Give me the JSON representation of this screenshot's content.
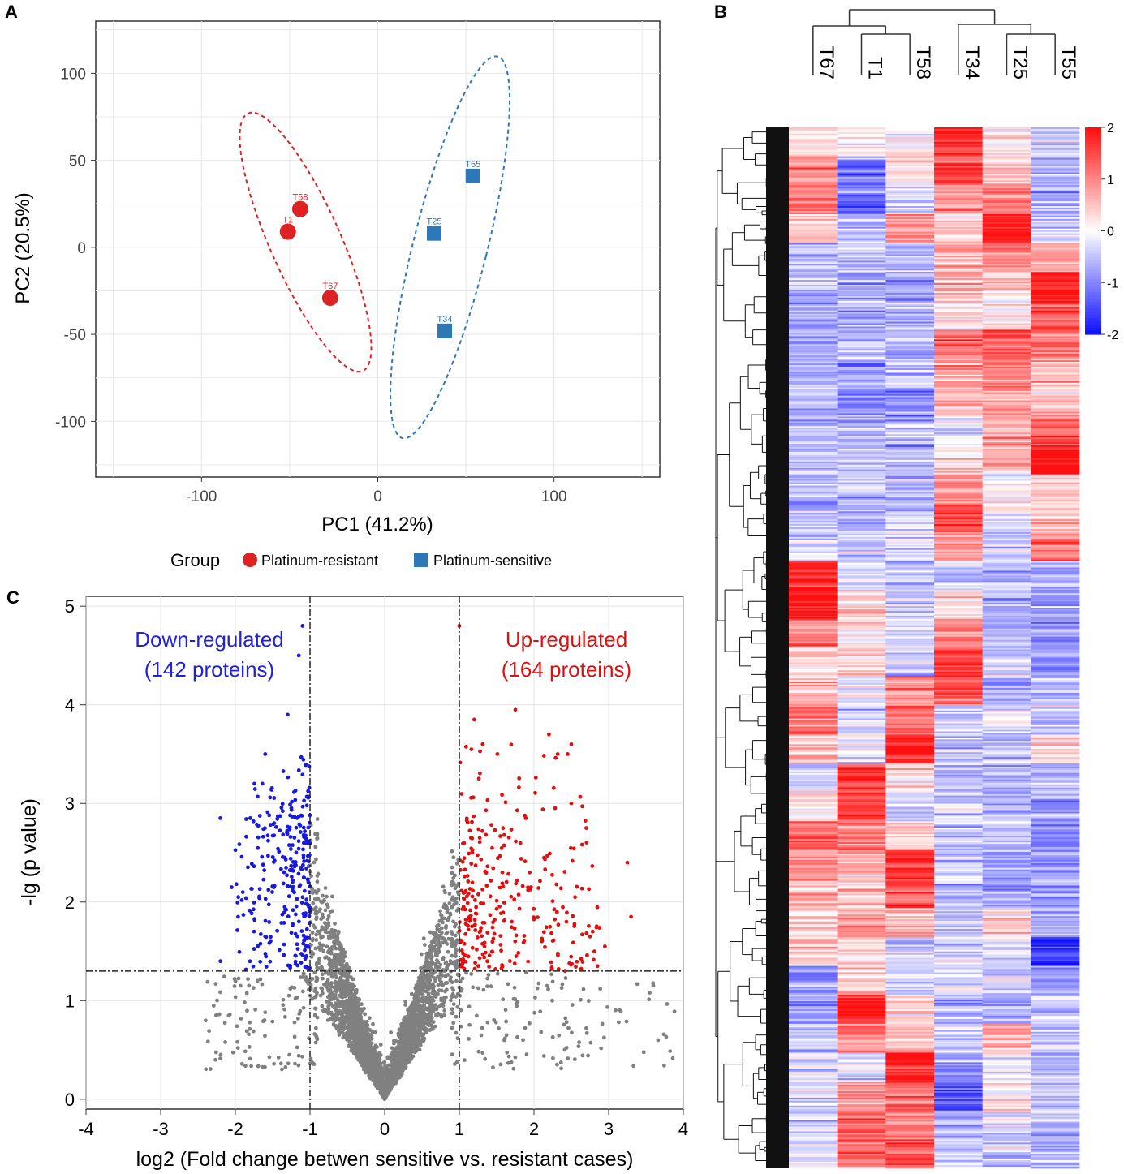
{
  "chart_data": [
    {
      "panel": "A",
      "type": "scatter",
      "xlabel": "PC1 (41.2%)",
      "ylabel": "PC2 (20.5%)",
      "xlim": [
        -160,
        160
      ],
      "ylim": [
        -132,
        130
      ],
      "xticks": [
        -100,
        0,
        100
      ],
      "yticks": [
        100,
        50,
        0,
        -50,
        -100
      ],
      "grid": true,
      "legend": {
        "title": "Group",
        "placement": "bottom"
      },
      "series": [
        {
          "name": "Platinum-resistant",
          "color": "#dc2222",
          "marker": "circle",
          "points": [
            {
              "label": "T58",
              "x": -44,
              "y": 22
            },
            {
              "label": "T1",
              "x": -51,
              "y": 9
            },
            {
              "label": "T67",
              "x": -27,
              "y": -29
            }
          ],
          "ellipse": {
            "cx": -41,
            "cy": 3,
            "rx": 20,
            "ry": 81,
            "angle_deg": -24
          }
        },
        {
          "name": "Platinum-sensitive",
          "color": "#2e78b8",
          "marker": "square",
          "points": [
            {
              "label": "T55",
              "x": 54,
              "y": 41
            },
            {
              "label": "T25",
              "x": 32,
              "y": 8
            },
            {
              "label": "T34",
              "x": 38,
              "y": -48
            }
          ],
          "ellipse": {
            "cx": 41,
            "cy": 0,
            "rx": 21,
            "ry": 113,
            "angle_deg": 14
          }
        }
      ]
    },
    {
      "panel": "B",
      "type": "heatmap",
      "columns": [
        "T67",
        "T1",
        "T58",
        "T34",
        "T25",
        "T55"
      ],
      "colorbar": {
        "min": -2,
        "max": 2,
        "ticks": [
          "2",
          "1",
          "0",
          "-1",
          "-2"
        ],
        "low_color": "#1010ff",
        "mid_color": "#ffffff",
        "high_color": "#ff1010"
      },
      "column_dendrogram": "((T67,(T1,T58)),(T34,(T25,T55)))",
      "row_blocks": [
        [
          0.1,
          0.0,
          0.1,
          1.8,
          0.2,
          -0.4
        ],
        [
          0.9,
          -1.0,
          0.2,
          1.6,
          0.6,
          -0.7
        ],
        [
          1.2,
          -1.2,
          -0.4,
          0.9,
          1.1,
          -0.8
        ],
        [
          0.4,
          -0.5,
          0.8,
          0.3,
          2.0,
          -0.6
        ],
        [
          -0.6,
          -0.4,
          -0.6,
          0.7,
          0.9,
          0.8
        ],
        [
          -0.7,
          -0.6,
          -0.8,
          0.6,
          0.4,
          1.9
        ],
        [
          -0.9,
          -0.7,
          -0.5,
          0.3,
          0.2,
          1.5
        ],
        [
          -0.8,
          -0.5,
          -0.6,
          1.2,
          1.4,
          1.1
        ],
        [
          -0.7,
          -0.8,
          -0.4,
          0.8,
          1.0,
          0.7
        ],
        [
          -0.6,
          -1.1,
          -0.9,
          0.6,
          0.7,
          0.6
        ],
        [
          -0.4,
          -0.6,
          -0.5,
          -0.2,
          0.9,
          1.4
        ],
        [
          -0.5,
          -0.5,
          -0.6,
          0.1,
          0.6,
          2.0
        ],
        [
          -0.6,
          -0.4,
          -0.7,
          0.9,
          0.1,
          0.4
        ],
        [
          -0.5,
          -0.6,
          -0.4,
          1.6,
          -0.2,
          0.5
        ],
        [
          -0.3,
          -0.5,
          -0.2,
          0.8,
          -0.4,
          1.2
        ],
        [
          1.8,
          -0.2,
          -0.5,
          -0.3,
          -0.6,
          -0.7
        ],
        [
          1.9,
          0.4,
          -0.4,
          0.2,
          -0.5,
          -0.9
        ],
        [
          1.1,
          0.2,
          -0.3,
          1.0,
          -0.6,
          -0.8
        ],
        [
          0.4,
          0.3,
          -0.4,
          1.7,
          -0.4,
          -0.9
        ],
        [
          0.6,
          -0.2,
          0.9,
          1.3,
          -0.7,
          -0.6
        ],
        [
          1.3,
          -0.3,
          1.2,
          -0.4,
          -0.3,
          -0.5
        ],
        [
          0.6,
          -0.2,
          1.9,
          -0.5,
          -0.4,
          0.3
        ],
        [
          -0.3,
          1.8,
          0.3,
          -0.6,
          -0.7,
          -0.6
        ],
        [
          0.2,
          1.7,
          -0.3,
          -0.5,
          -0.6,
          -0.8
        ],
        [
          1.3,
          1.2,
          0.5,
          -0.4,
          -0.6,
          -0.9
        ],
        [
          0.9,
          0.6,
          1.7,
          -0.3,
          -0.7,
          -0.9
        ],
        [
          0.7,
          0.4,
          1.6,
          -0.5,
          -0.6,
          -0.8
        ],
        [
          0.3,
          0.8,
          0.5,
          -0.6,
          0.5,
          -0.7
        ],
        [
          0.4,
          0.2,
          -0.3,
          -0.4,
          -0.2,
          -1.8
        ],
        [
          -0.9,
          0.5,
          -0.5,
          -0.3,
          -0.3,
          -0.7
        ],
        [
          -0.8,
          1.9,
          0.3,
          -0.6,
          -0.6,
          -0.5
        ],
        [
          -0.4,
          1.1,
          0.6,
          -0.4,
          0.7,
          -0.4
        ],
        [
          -0.3,
          -0.3,
          1.9,
          -0.8,
          -0.2,
          -0.5
        ],
        [
          -0.2,
          0.8,
          1.3,
          -1.4,
          0.3,
          -0.5
        ],
        [
          -0.3,
          1.2,
          1.1,
          -0.6,
          -0.2,
          -0.6
        ],
        [
          -0.2,
          1.1,
          1.5,
          -0.5,
          -0.4,
          -0.7
        ]
      ]
    },
    {
      "panel": "C",
      "type": "scatter",
      "subtype": "volcano",
      "xlabel": "log2 (Fold change betwen sensitive vs. resistant cases)",
      "ylabel": "-lg (p value)",
      "xlim": [
        -4,
        4
      ],
      "ylim": [
        -0.1,
        5.1
      ],
      "xticks": [
        -4,
        -3,
        -2,
        -1,
        0,
        1,
        2,
        3,
        4
      ],
      "yticks": [
        0,
        1,
        2,
        3,
        4,
        5
      ],
      "thresholds": {
        "fold_change": [
          -1,
          1
        ],
        "p_value_line": 1.3
      },
      "colors": {
        "down": "#1a1adc",
        "up": "#e01010",
        "ns": "#808080"
      },
      "annotations": [
        {
          "text": "Down-regulated",
          "color": "#2020e0",
          "placement": "upper-left"
        },
        {
          "text": "(142 proteins)",
          "color": "#2020e0",
          "placement": "upper-left"
        },
        {
          "text": "Up-regulated",
          "color": "#e01010",
          "placement": "upper-right"
        },
        {
          "text": "(164 proteins)",
          "color": "#e01010",
          "placement": "upper-right"
        }
      ],
      "down_count": 142,
      "up_count": 164,
      "highlight_points": [
        {
          "x": -1.1,
          "y": 4.8
        },
        {
          "x": -1.15,
          "y": 4.5
        },
        {
          "x": -1.3,
          "y": 3.9
        },
        {
          "x": -1.6,
          "y": 3.5
        },
        {
          "x": -2.2,
          "y": 2.85
        },
        {
          "x": -1.8,
          "y": 2.85
        },
        {
          "x": -2.05,
          "y": 2.15
        },
        {
          "x": -1.9,
          "y": 2.1
        },
        {
          "x": -1.75,
          "y": 1.7
        },
        {
          "x": -2.2,
          "y": 1.4
        },
        {
          "x": -1.6,
          "y": 1.65
        },
        {
          "x": 1.0,
          "y": 4.8
        },
        {
          "x": 1.2,
          "y": 3.85
        },
        {
          "x": 1.75,
          "y": 3.95
        },
        {
          "x": 2.2,
          "y": 3.7
        },
        {
          "x": 2.5,
          "y": 3.6
        },
        {
          "x": 2.45,
          "y": 3.5
        },
        {
          "x": 2.5,
          "y": 3.0
        },
        {
          "x": 2.7,
          "y": 2.75
        },
        {
          "x": 3.25,
          "y": 2.4
        },
        {
          "x": 3.3,
          "y": 1.85
        },
        {
          "x": 2.55,
          "y": 2.05
        },
        {
          "x": 2.75,
          "y": 1.65
        },
        {
          "x": 2.95,
          "y": 1.55
        },
        {
          "x": 2.85,
          "y": 1.35
        }
      ]
    }
  ],
  "panel_labels": {
    "a": "A",
    "b": "B",
    "c": "C"
  }
}
